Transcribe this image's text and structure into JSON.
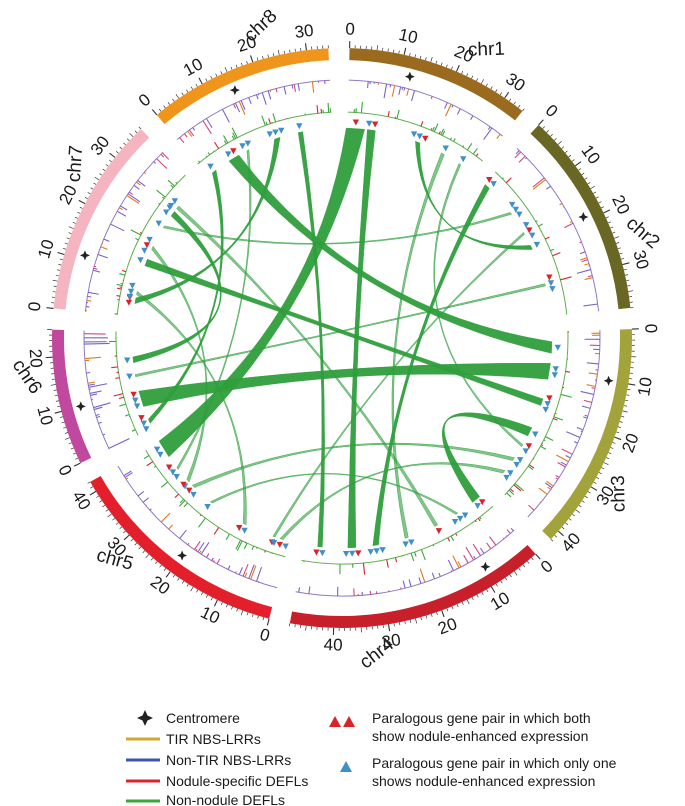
{
  "chromosomes": [
    {
      "name": "chr1",
      "length": 34,
      "color": "#9a6a1f",
      "ticks": [
        0,
        10,
        20,
        30
      ],
      "centromere": 12
    },
    {
      "name": "chr2",
      "length": 38,
      "color": "#6a6624",
      "ticks": [
        0,
        10,
        20,
        30
      ],
      "centromere": 19
    },
    {
      "name": "chr3",
      "length": 42,
      "color": "#a3a33b",
      "ticks": [
        0,
        10,
        20,
        30,
        40
      ],
      "centromere": 10
    },
    {
      "name": "chr4",
      "length": 48,
      "color": "#c8202b",
      "ticks": [
        0,
        10,
        20,
        30,
        40
      ],
      "centromere": 9
    },
    {
      "name": "chr5",
      "length": 42,
      "color": "#e21f2a",
      "ticks": [
        0,
        10,
        20,
        30,
        40
      ],
      "centromere": 20
    },
    {
      "name": "chr6",
      "length": 25,
      "color": "#c0489e",
      "ticks": [
        0,
        10,
        20
      ],
      "centromere": 10
    },
    {
      "name": "chr7",
      "length": 37,
      "color": "#f4b5c1",
      "ticks": [
        0,
        10,
        20,
        30
      ],
      "centromere": 11
    },
    {
      "name": "chr8",
      "length": 34,
      "color": "#f0951c",
      "ticks": [
        0,
        10,
        20,
        30
      ],
      "centromere": 15
    }
  ],
  "track_colors": {
    "tir": "#d4a72c",
    "nontir": "#3a56a8",
    "nodule_defl": "#d92330",
    "non_nodule_defl": "#3aa53a",
    "links": "#2e9e3c",
    "triangle_both": "#d9232b",
    "triangle_one": "#3f8fc9",
    "centromere": "#222222"
  },
  "legend": {
    "centromere": "Centromere",
    "tir": "TIR NBS-LRRs",
    "nontir": "Non-TIR NBS-LRRs",
    "nodule_defl": "Nodule-specific DEFLs",
    "non_nodule_defl": "Non-nodule DEFLs",
    "both_line1": "Paralogous gene pair in which both",
    "both_line2": "show nodule-enhanced expression",
    "one_line1": "Paralogous gene pair in which only one",
    "one_line2": "shows nodule-enhanced expression"
  }
}
